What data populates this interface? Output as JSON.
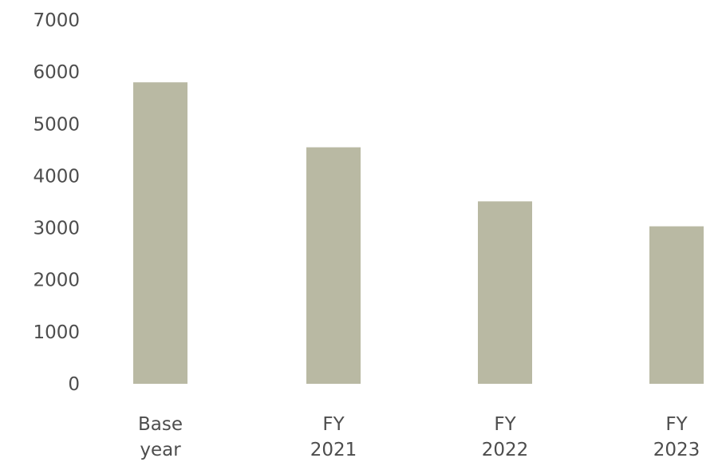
{
  "chart_data": {
    "type": "bar",
    "categories": [
      [
        "Base",
        "year"
      ],
      [
        "FY",
        "2021"
      ],
      [
        "FY",
        "2022"
      ],
      [
        "FY",
        "2023"
      ]
    ],
    "values": [
      5800,
      4550,
      3510,
      3030
    ],
    "yticks": [
      "0",
      "1000",
      "2000",
      "3000",
      "4000",
      "5000",
      "6000",
      "7000"
    ],
    "ylim": [
      0,
      7000
    ],
    "grid": false,
    "legend": "none",
    "bar_color": "#b9b9a3"
  }
}
